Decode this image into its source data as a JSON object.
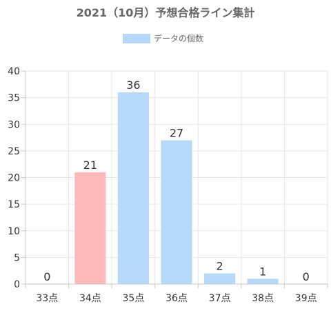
{
  "chart_data": {
    "type": "bar",
    "title": "2021（10月）予想合格ライン集計",
    "legend": {
      "label": "データの個数",
      "placement": "top-center"
    },
    "categories": [
      "33点",
      "34点",
      "35点",
      "36点",
      "37点",
      "38点",
      "39点"
    ],
    "values": [
      0,
      21,
      36,
      27,
      2,
      1,
      0
    ],
    "highlight_category": "34点",
    "ylim": [
      0,
      40
    ],
    "yticks": [
      0,
      5,
      10,
      15,
      20,
      25,
      30,
      35,
      40
    ],
    "grid": true,
    "xlabel": "",
    "ylabel": "",
    "colors": {
      "bar": "#b6d9fb",
      "highlight": "#fdbaba",
      "grid": "#e6e6e6",
      "axis": "#c8c8c8",
      "title": "#666666",
      "text": "#333333"
    }
  }
}
